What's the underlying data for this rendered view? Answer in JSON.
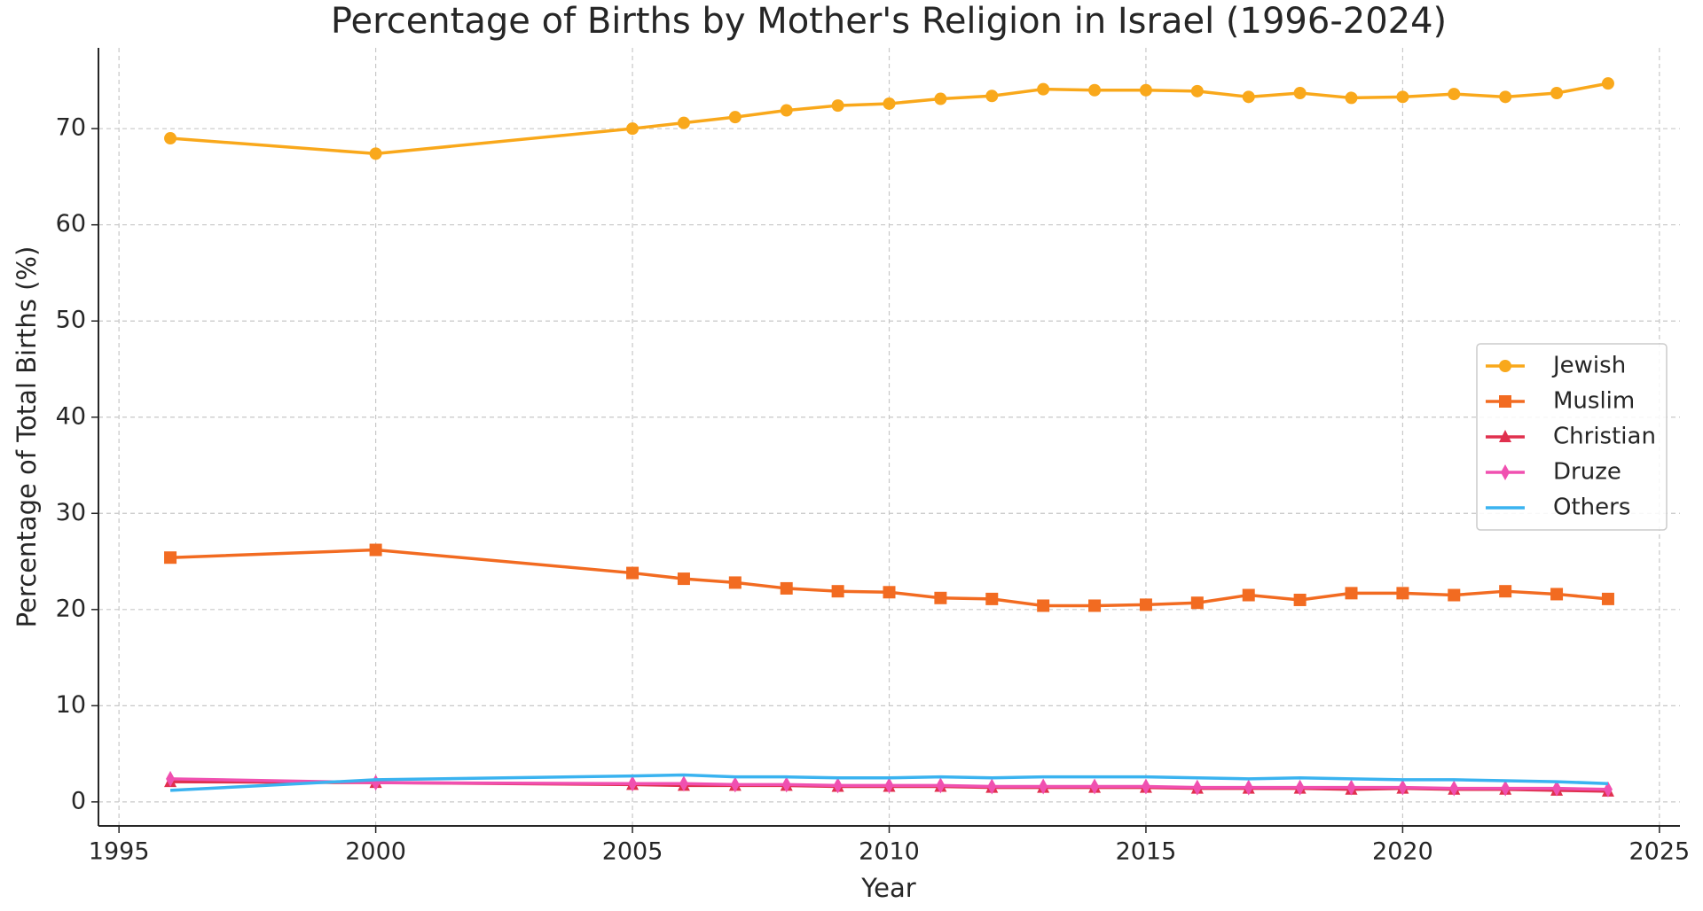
{
  "chart_data": {
    "type": "line",
    "title": "Percentage of Births by Mother's Religion in Israel (1996-2024)",
    "x_label": "Year",
    "y_label": "Percentage of Total Births (%)",
    "x": [
      1996,
      2000,
      2005,
      2006,
      2007,
      2008,
      2009,
      2010,
      2011,
      2012,
      2013,
      2014,
      2015,
      2016,
      2017,
      2018,
      2019,
      2020,
      2021,
      2022,
      2023,
      2024
    ],
    "series": [
      {
        "name": "Jewish",
        "color": "#f9a81b",
        "marker": "circle",
        "values": [
          69.0,
          67.4,
          70.0,
          70.6,
          71.2,
          71.9,
          72.4,
          72.6,
          73.1,
          73.4,
          74.1,
          74.0,
          74.0,
          73.9,
          73.3,
          73.7,
          73.2,
          73.3,
          73.6,
          73.3,
          73.7,
          74.7
        ]
      },
      {
        "name": "Muslim",
        "color": "#f26b21",
        "marker": "square",
        "values": [
          25.4,
          26.2,
          23.8,
          23.2,
          22.8,
          22.2,
          21.9,
          21.8,
          21.2,
          21.1,
          20.4,
          20.4,
          20.5,
          20.7,
          21.5,
          21.0,
          21.7,
          21.7,
          21.5,
          21.9,
          21.6,
          21.1
        ]
      },
      {
        "name": "Christian",
        "color": "#e0304e",
        "marker": "triangle",
        "values": [
          2.1,
          2.0,
          1.8,
          1.7,
          1.7,
          1.7,
          1.6,
          1.6,
          1.6,
          1.5,
          1.5,
          1.5,
          1.5,
          1.4,
          1.4,
          1.4,
          1.3,
          1.4,
          1.3,
          1.3,
          1.2,
          1.1
        ]
      },
      {
        "name": "Druze",
        "color": "#f050b0",
        "marker": "diamond",
        "values": [
          2.4,
          2.0,
          1.9,
          1.9,
          1.8,
          1.8,
          1.7,
          1.7,
          1.7,
          1.6,
          1.6,
          1.6,
          1.6,
          1.5,
          1.5,
          1.5,
          1.5,
          1.5,
          1.4,
          1.4,
          1.4,
          1.3
        ]
      },
      {
        "name": "Others",
        "color": "#3ab3f0",
        "marker": "none",
        "values": [
          1.2,
          2.3,
          2.7,
          2.8,
          2.6,
          2.6,
          2.5,
          2.5,
          2.6,
          2.5,
          2.6,
          2.6,
          2.6,
          2.5,
          2.4,
          2.5,
          2.4,
          2.3,
          2.3,
          2.2,
          2.1,
          1.9
        ]
      }
    ],
    "xlim": [
      1994.6,
      2025.4
    ],
    "ylim": [
      -2.5,
      78.4
    ],
    "xticks": [
      1995,
      2000,
      2005,
      2010,
      2015,
      2020,
      2025
    ],
    "yticks": [
      0,
      10,
      20,
      30,
      40,
      50,
      60,
      70
    ],
    "grid": true,
    "legend": "center right"
  }
}
